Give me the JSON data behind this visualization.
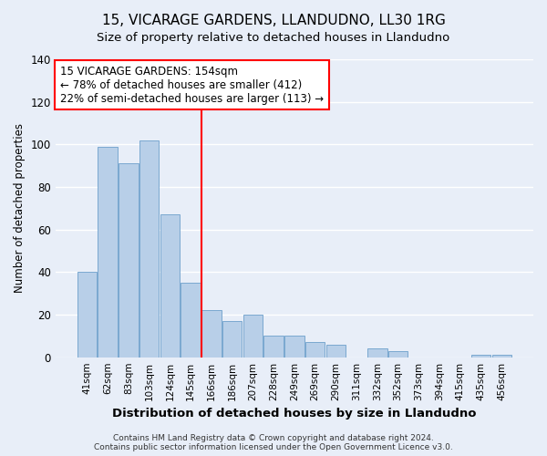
{
  "title": "15, VICARAGE GARDENS, LLANDUDNO, LL30 1RG",
  "subtitle": "Size of property relative to detached houses in Llandudno",
  "xlabel": "Distribution of detached houses by size in Llandudno",
  "ylabel": "Number of detached properties",
  "bar_labels": [
    "41sqm",
    "62sqm",
    "83sqm",
    "103sqm",
    "124sqm",
    "145sqm",
    "166sqm",
    "186sqm",
    "207sqm",
    "228sqm",
    "249sqm",
    "269sqm",
    "290sqm",
    "311sqm",
    "332sqm",
    "352sqm",
    "373sqm",
    "394sqm",
    "415sqm",
    "435sqm",
    "456sqm"
  ],
  "bar_values": [
    40,
    99,
    91,
    102,
    67,
    35,
    22,
    17,
    20,
    10,
    10,
    7,
    6,
    0,
    4,
    3,
    0,
    0,
    0,
    1,
    1
  ],
  "bar_color": "#b8cfe8",
  "vline_color": "red",
  "vline_x": 5.5,
  "ylim": [
    0,
    140
  ],
  "yticks": [
    0,
    20,
    40,
    60,
    80,
    100,
    120,
    140
  ],
  "annotation_title": "15 VICARAGE GARDENS: 154sqm",
  "annotation_line1": "← 78% of detached houses are smaller (412)",
  "annotation_line2": "22% of semi-detached houses are larger (113) →",
  "annotation_box_facecolor": "#ffffff",
  "annotation_box_edgecolor": "red",
  "footer_line1": "Contains HM Land Registry data © Crown copyright and database right 2024.",
  "footer_line2": "Contains public sector information licensed under the Open Government Licence v3.0.",
  "background_color": "#e8eef8",
  "grid_color": "#ffffff",
  "title_fontsize": 11,
  "subtitle_fontsize": 9.5
}
